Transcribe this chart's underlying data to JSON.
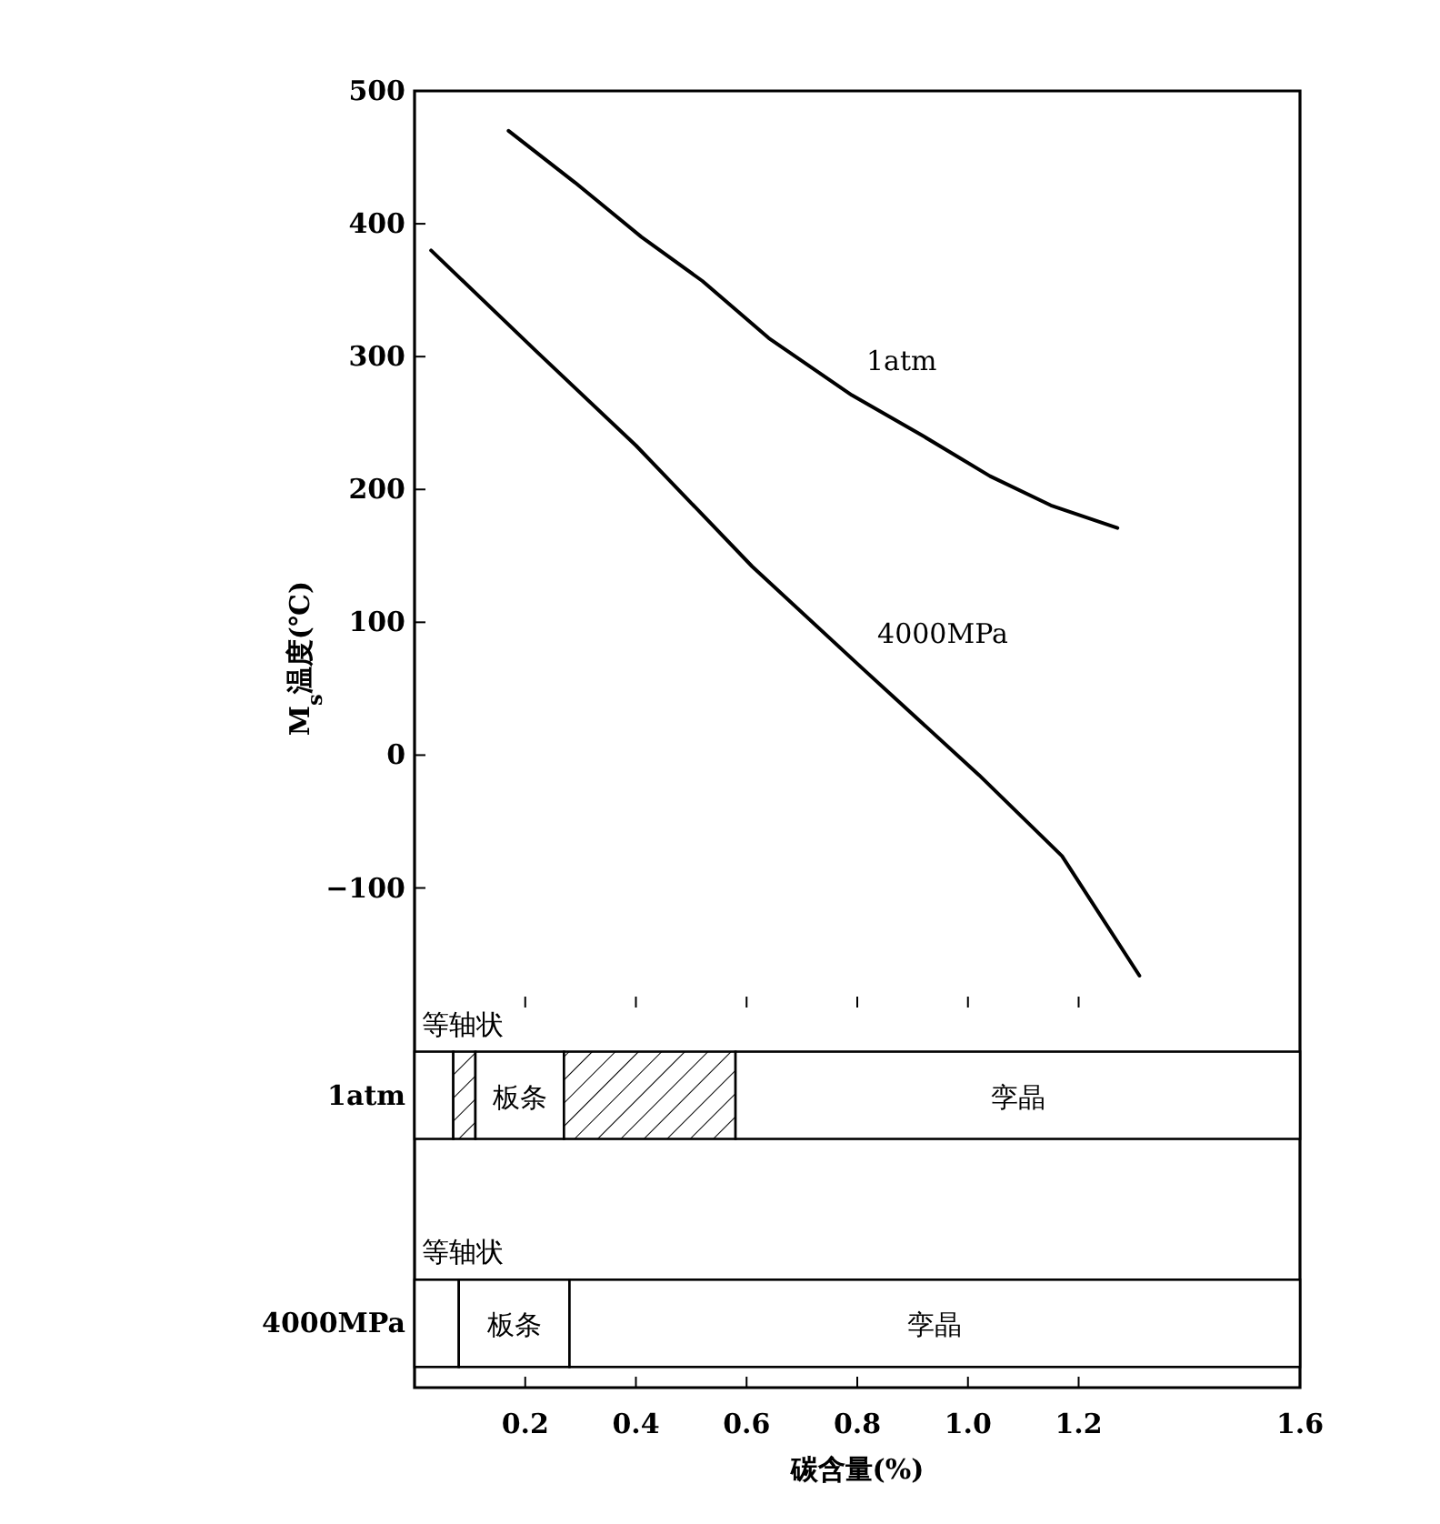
{
  "chart_data": [
    {
      "type": "line",
      "ylabel": "M$_{s}$温度(℃)",
      "xlim": [
        0,
        1.6
      ],
      "ylim": [
        -190,
        500
      ],
      "yticks": [
        500,
        400,
        300,
        200,
        100,
        0,
        -100
      ],
      "xticks": [
        0.2,
        0.4,
        0.6,
        0.8,
        1.0,
        1.2,
        1.6
      ],
      "tick_labels": "y",
      "series": [
        {
          "name": "1atm",
          "color": "#000000",
          "x": [
            0.17,
            0.29,
            0.41,
            0.52,
            0.64,
            0.79,
            0.92,
            1.04,
            1.15,
            1.27
          ],
          "values": [
            470,
            431,
            390,
            357,
            314,
            271,
            240,
            210,
            188,
            171
          ]
        },
        {
          "name": "4000MPa",
          "color": "#000000",
          "x": [
            0.03,
            0.22,
            0.4,
            0.61,
            0.81,
            1.02,
            1.17,
            1.31
          ],
          "values": [
            380,
            304,
            233,
            142,
            65,
            -15,
            -76,
            -166
          ]
        }
      ]
    },
    {
      "type": "bar",
      "orientation": "horizontal",
      "stacked": true,
      "xlabel": "碳含量(%)",
      "categories": [
        "1atm",
        "4000MPa"
      ],
      "xlim": [
        0,
        1.6
      ],
      "xticks": [
        0.2,
        0.4,
        0.6,
        0.8,
        {
          "value": 1.0,
          "label": "1.0"
        },
        1.2,
        1.6
      ],
      "series": [
        {
          "name": "等轴状",
          "color": "#ffffff",
          "values": [
            0.07,
            0.08
          ]
        },
        {
          "color": "#000000",
          "values": [
            0.04,
            0
          ]
        },
        {
          "name": "板条",
          "color": "#ffffff",
          "values": [
            0.16,
            0.2
          ]
        },
        {
          "color": "#000000",
          "values": [
            0.31,
            0
          ]
        },
        {
          "name": "孪晶",
          "color": "#ffffff",
          "values": [
            1.02,
            1.32
          ]
        }
      ]
    }
  ]
}
